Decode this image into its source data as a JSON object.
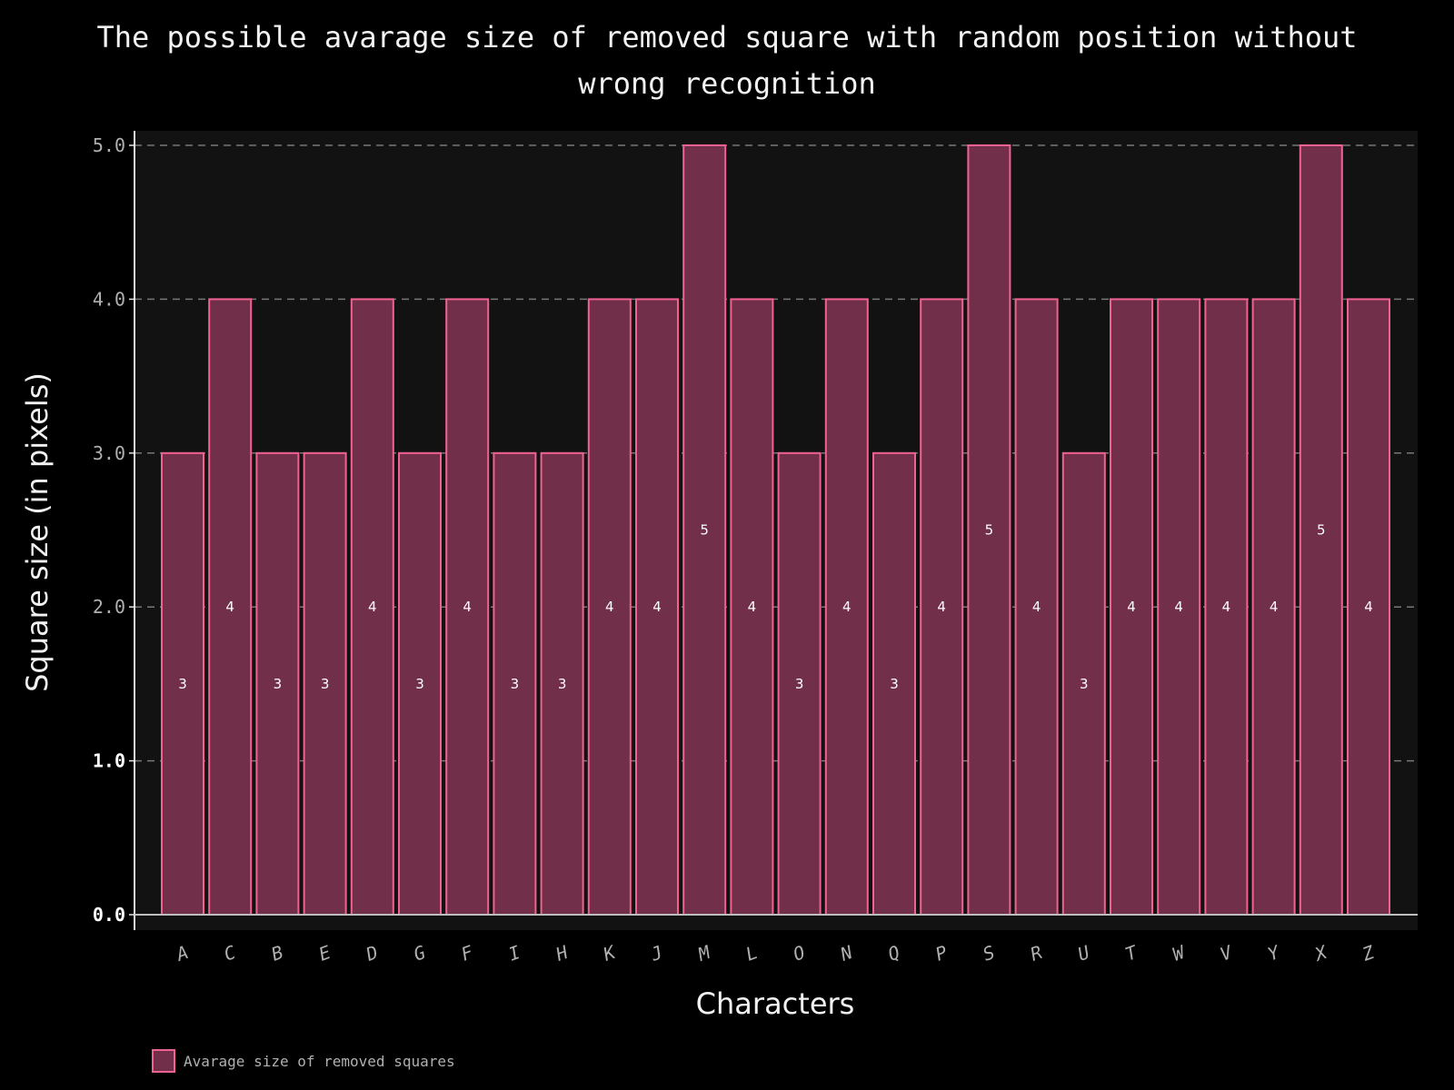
{
  "chart_data": {
    "type": "bar",
    "title_lines": [
      "The possible avarage size of removed square with random position without",
      "wrong recognition"
    ],
    "xlabel": "Characters",
    "ylabel": "Square size (in pixels)",
    "ylim": [
      0,
      5
    ],
    "yticks": [
      "0.0",
      "1.0",
      "2.0",
      "3.0",
      "4.0",
      "5.0"
    ],
    "grid": true,
    "legend_position": "bottom-left",
    "categories": [
      "A",
      "C",
      "B",
      "E",
      "D",
      "G",
      "F",
      "I",
      "H",
      "K",
      "J",
      "M",
      "L",
      "O",
      "N",
      "Q",
      "P",
      "S",
      "R",
      "U",
      "T",
      "W",
      "V",
      "Y",
      "X",
      "Z"
    ],
    "series": [
      {
        "name": "Avarage size of removed squares",
        "values": [
          3,
          4,
          3,
          3,
          4,
          3,
          4,
          3,
          3,
          4,
          4,
          5,
          4,
          3,
          4,
          3,
          4,
          5,
          4,
          3,
          4,
          4,
          4,
          4,
          5,
          4
        ],
        "data_labels": [
          "3",
          "4",
          "3",
          "3",
          "4",
          "3",
          "4",
          "3",
          "3",
          "4",
          "4",
          "5",
          "4",
          "3",
          "4",
          "3",
          "4",
          "5",
          "4",
          "3",
          "4",
          "4",
          "4",
          "4",
          "5",
          "4"
        ],
        "fill": "#722f49",
        "edge": "#f06292"
      }
    ],
    "colors": {
      "background": "#000000",
      "plot_background": "#121212",
      "grid": "#777777",
      "axis": "#e6e6e6"
    }
  }
}
